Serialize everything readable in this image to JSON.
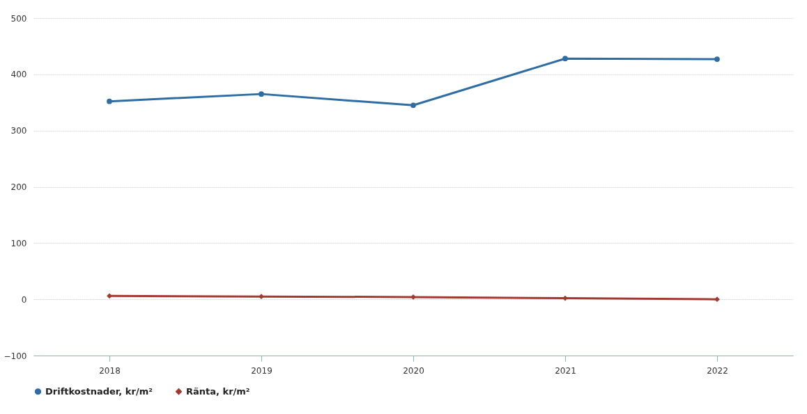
{
  "chart_data": {
    "type": "line",
    "categories": [
      "2018",
      "2019",
      "2020",
      "2021",
      "2022"
    ],
    "series": [
      {
        "name": "Driftkostnader, kr/m²",
        "color": "#2e6da4",
        "marker": "circle",
        "values": [
          352,
          365,
          345,
          428,
          427
        ]
      },
      {
        "name": "Ränta, kr/m²",
        "color": "#a33a32",
        "marker": "diamond",
        "values": [
          6,
          5,
          4,
          2,
          0
        ]
      }
    ],
    "ylim": [
      -100,
      500
    ],
    "yticks": [
      -100,
      0,
      100,
      200,
      300,
      400,
      500
    ],
    "grid": "y",
    "legend": "bottom"
  }
}
